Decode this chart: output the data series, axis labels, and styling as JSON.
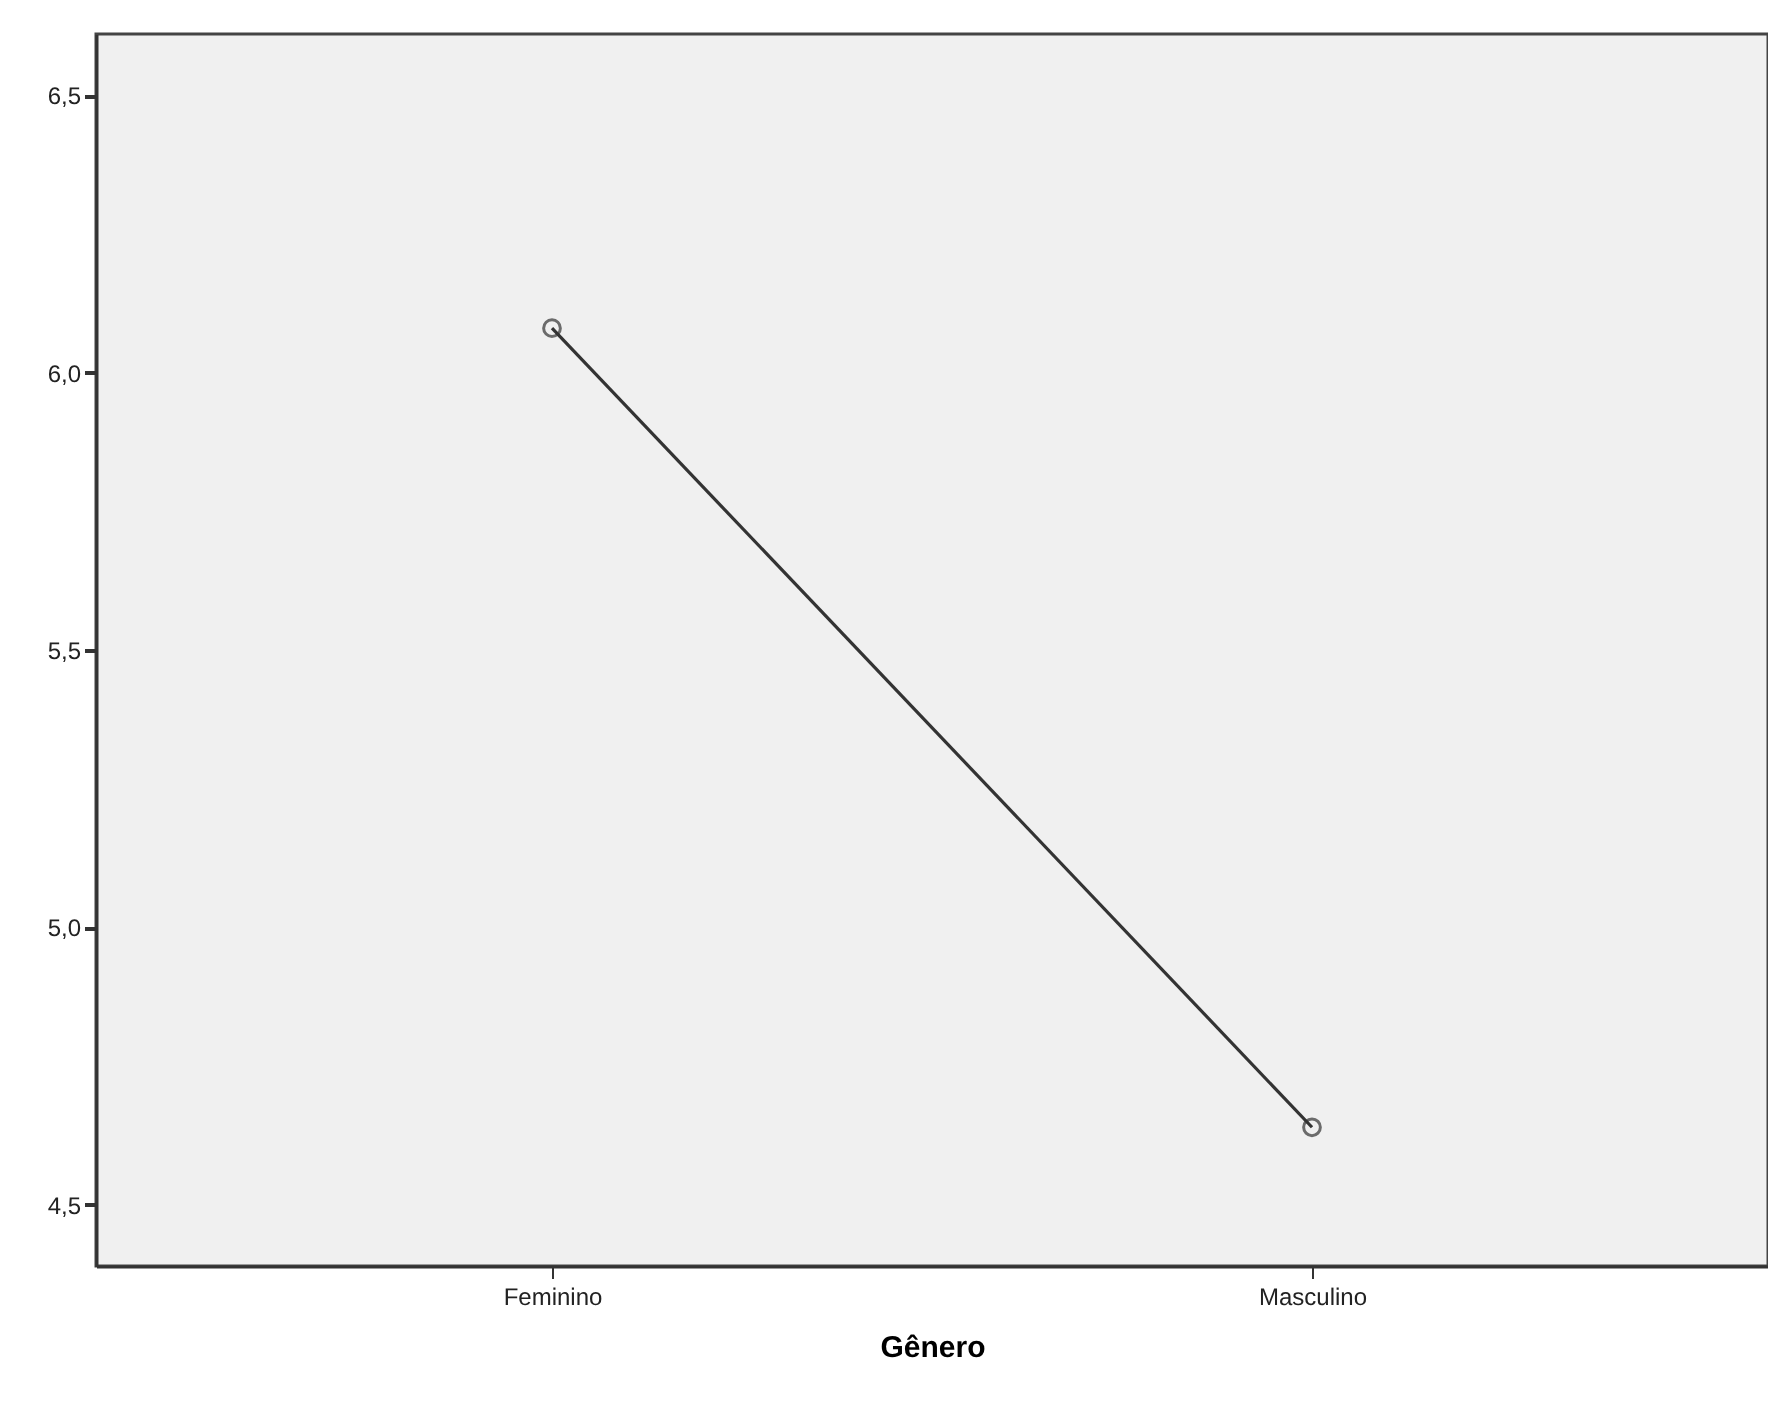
{
  "chart_data": {
    "type": "line",
    "xlabel": "Gênero",
    "categories": [
      "Feminino",
      "Masculino"
    ],
    "series": [
      {
        "color": "#333333",
        "values": [
          6.08,
          4.64
        ]
      }
    ],
    "ylim": [
      4.39,
      6.61
    ],
    "yticks": [
      {
        "value": 4.5,
        "label": "4,5"
      },
      {
        "value": 5.0,
        "label": "5,0"
      },
      {
        "value": 5.5,
        "label": "5,5"
      },
      {
        "value": 6.0,
        "label": "6,0"
      },
      {
        "value": 6.5,
        "label": "6,5"
      }
    ],
    "marker": "circle",
    "line_style": "solid",
    "grid": false
  }
}
